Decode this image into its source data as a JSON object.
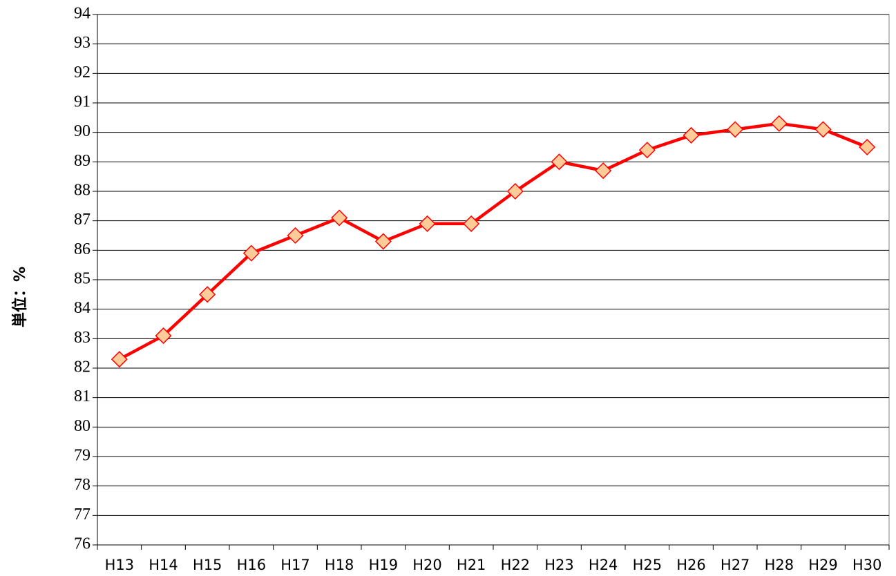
{
  "chart_data": {
    "type": "line",
    "y_label": "単位：%",
    "categories": [
      "H13",
      "H14",
      "H15",
      "H16",
      "H17",
      "H18",
      "H19",
      "H20",
      "H21",
      "H22",
      "H23",
      "H24",
      "H25",
      "H26",
      "H27",
      "H28",
      "H29",
      "H30"
    ],
    "series": [
      {
        "color": "#ff0000",
        "marker_fill": "#ffcc99",
        "values": [
          82.3,
          83.1,
          84.5,
          85.9,
          86.5,
          87.1,
          86.3,
          86.9,
          86.9,
          88.0,
          89.0,
          88.7,
          89.4,
          89.9,
          90.1,
          90.3,
          90.1,
          89.5
        ]
      }
    ],
    "ylim": [
      76,
      94
    ],
    "yticks": [
      76,
      77,
      78,
      79,
      80,
      81,
      82,
      83,
      84,
      85,
      86,
      87,
      88,
      89,
      90,
      91,
      92,
      93,
      94
    ],
    "grid": true
  }
}
